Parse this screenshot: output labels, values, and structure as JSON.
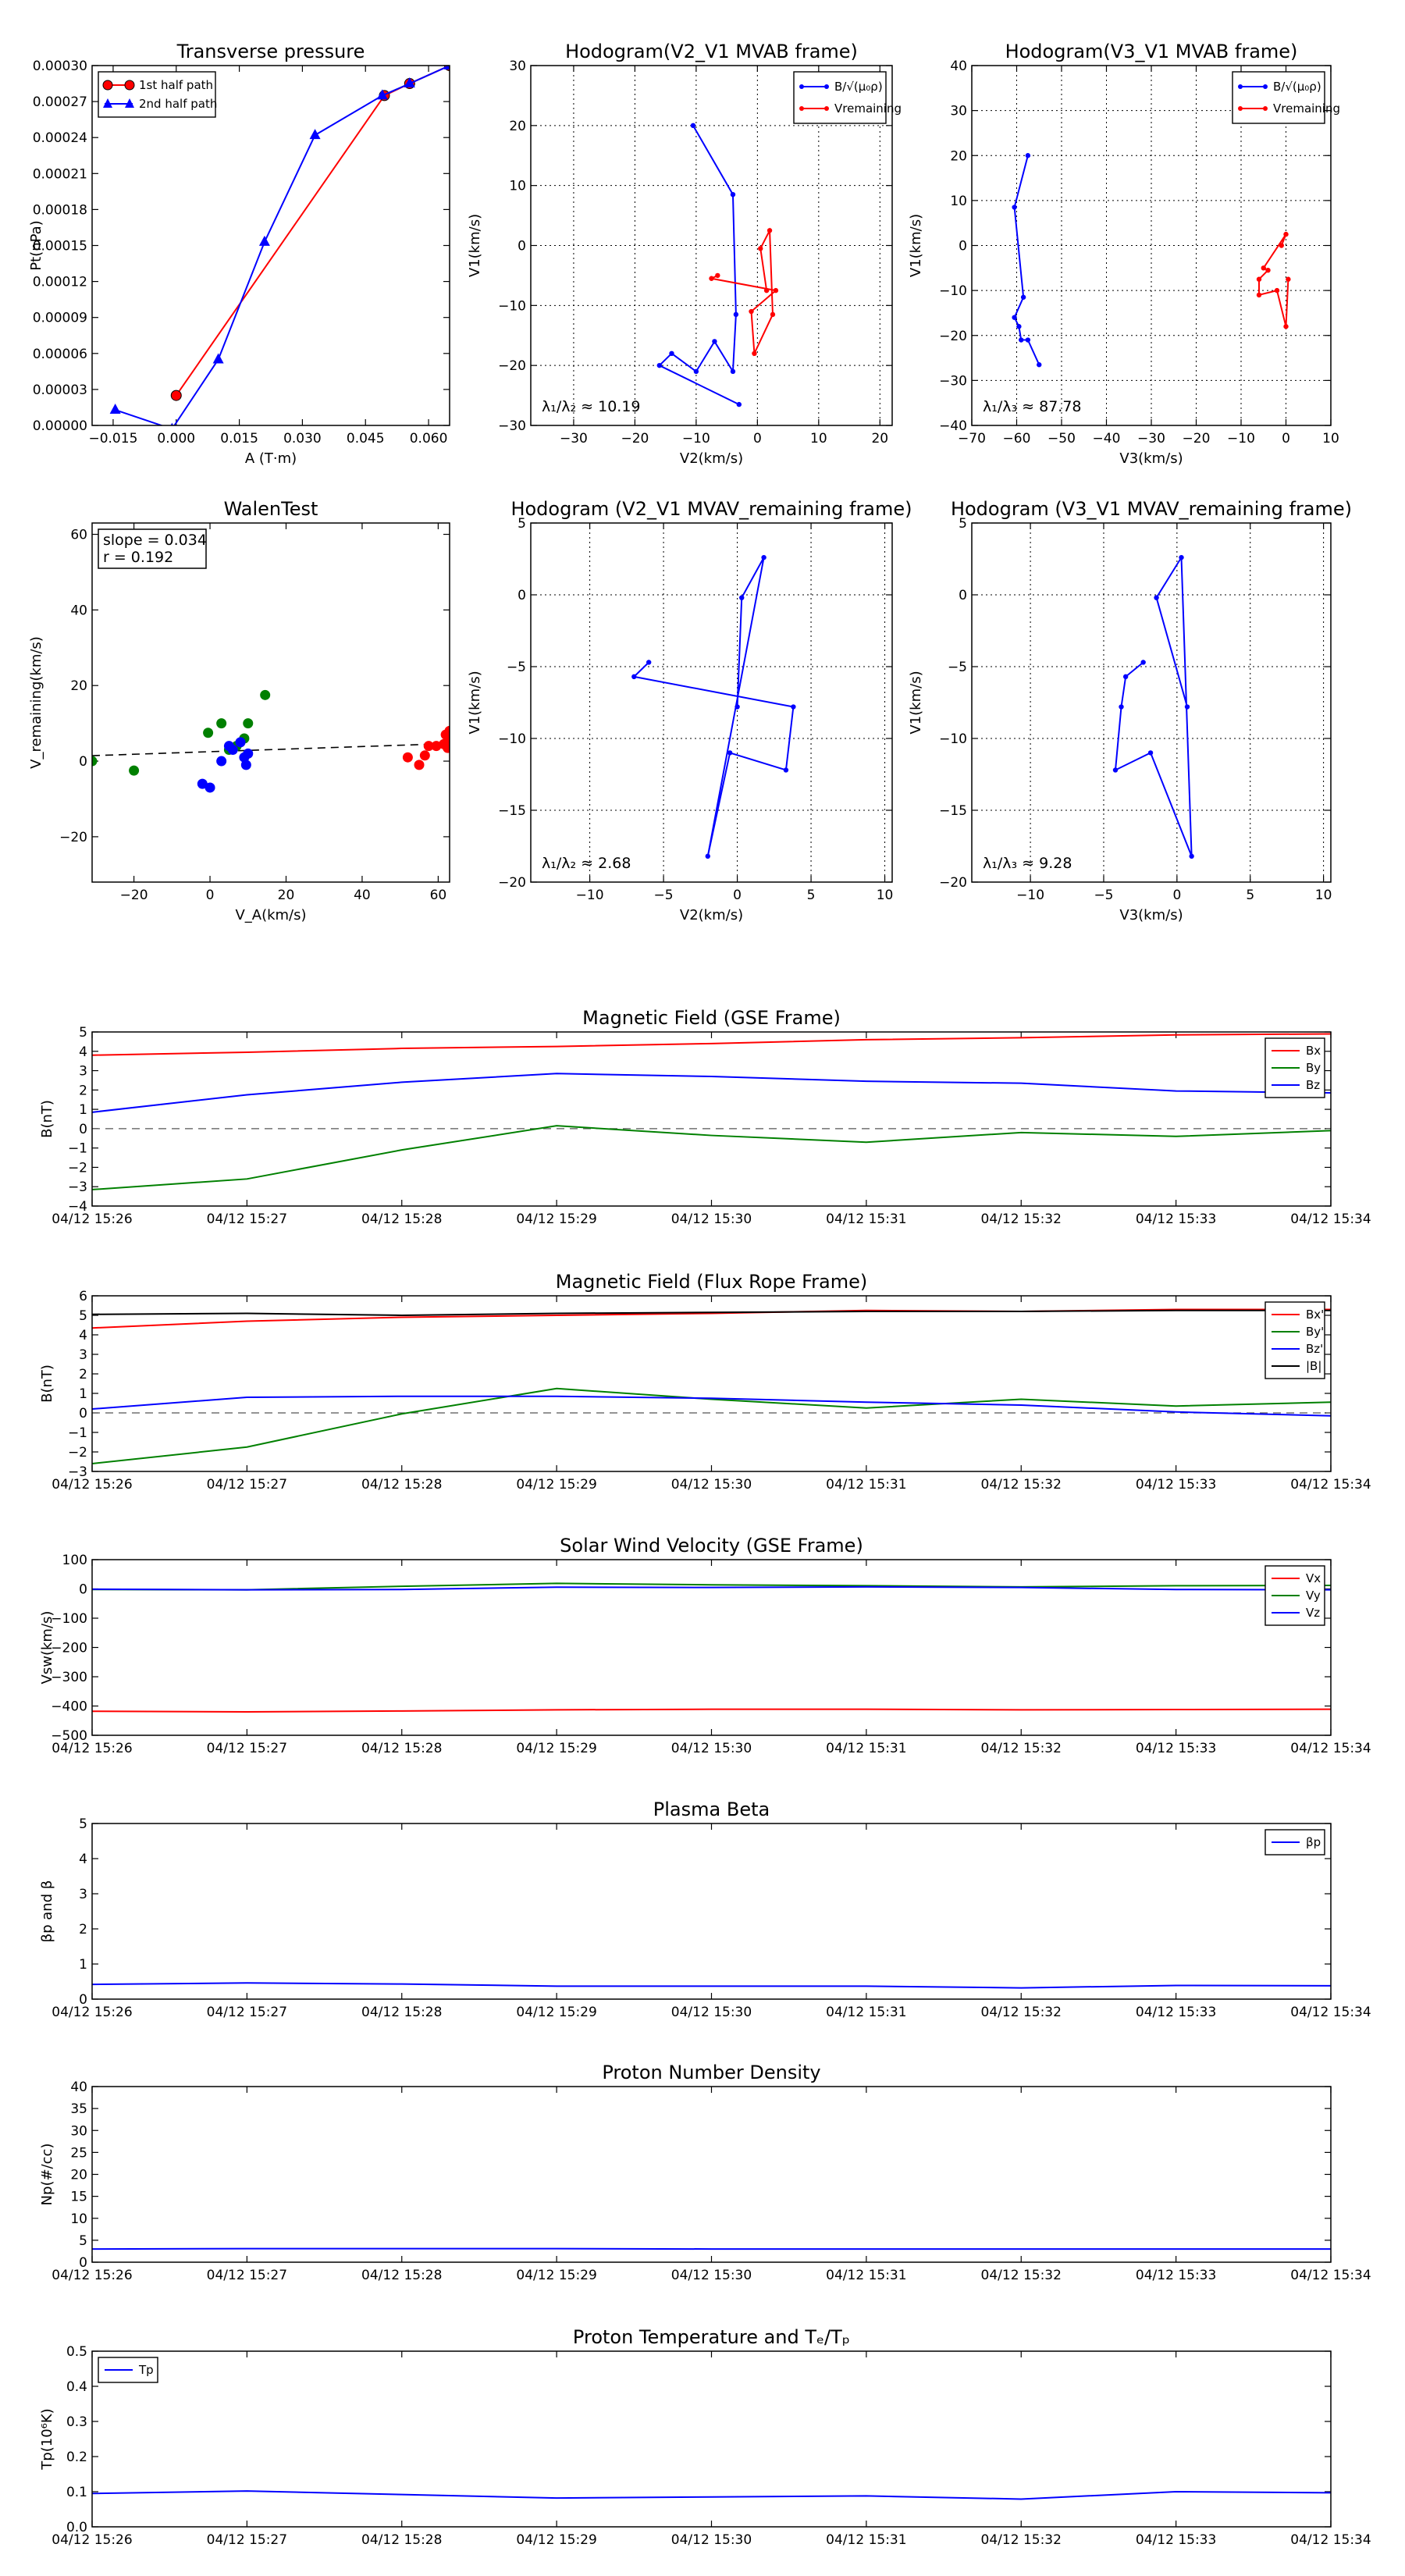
{
  "chart_data": [
    {
      "id": "tp",
      "type": "line",
      "title": "Transverse pressure",
      "xlabel": "A (T·m)",
      "ylabel": "Pt(nPa)",
      "xlim": [
        -0.02,
        0.065
      ],
      "ylim": [
        0,
        0.0003
      ],
      "xticks": [
        -0.015,
        0.0,
        0.015,
        0.03,
        0.045,
        0.06
      ],
      "xtick_labels": [
        "−0.015",
        "0.000",
        "0.015",
        "0.030",
        "0.045",
        "0.060"
      ],
      "yticks": [
        0,
        3e-05,
        6e-05,
        9e-05,
        0.00012,
        0.00015,
        0.00018,
        0.00021,
        0.00024,
        0.00027,
        0.0003
      ],
      "ytick_labels": [
        "0.00000",
        "0.00003",
        "0.00006",
        "0.00009",
        "0.00012",
        "0.00015",
        "0.00018",
        "0.00021",
        "0.00024",
        "0.00027",
        "0.00030"
      ],
      "grid": false,
      "legend": "top-left",
      "series": [
        {
          "name": "1st half path",
          "color": "#ff0000",
          "marker": "circle",
          "x": [
            0.0,
            0.0495,
            0.0555,
            0.065
          ],
          "y": [
            2.5e-05,
            0.000275,
            0.000285,
            0.0003
          ]
        },
        {
          "name": "2nd half path",
          "color": "#0000ff",
          "marker": "triangle",
          "x": [
            -0.0145,
            -0.001,
            0.01,
            0.021,
            0.033,
            0.049,
            0.0555,
            0.065
          ],
          "y": [
            1.3e-05,
            -3e-06,
            5.5e-05,
            0.000153,
            0.000242,
            0.000275,
            0.000285,
            0.0003
          ]
        }
      ]
    },
    {
      "id": "h1",
      "type": "line",
      "title": "Hodogram(V2_V1 MVAB frame)",
      "xlabel": "V2(km/s)",
      "ylabel": "V1(km/s)",
      "xlim": [
        -37,
        22
      ],
      "ylim": [
        -30,
        30
      ],
      "xticks": [
        -30,
        -20,
        -10,
        0,
        10,
        20
      ],
      "yticks": [
        -30,
        -20,
        -10,
        0,
        10,
        20,
        30
      ],
      "grid": true,
      "legend": "top-right",
      "annotation": "λ₁/λ₂ ≈ 10.19",
      "series": [
        {
          "name": "B/√(μ₀ρ)",
          "color": "#0000ff",
          "x": [
            -10.5,
            -4,
            -3.5,
            -4,
            -7,
            -10,
            -14,
            -16,
            -3
          ],
          "y": [
            20,
            8.5,
            -11.5,
            -21,
            -16,
            -21,
            -18,
            -20,
            -26.5
          ]
        },
        {
          "name": "Vremaining",
          "color": "#ff0000",
          "x": [
            -6.5,
            -7.5,
            3,
            -1,
            -0.5,
            2.5,
            2,
            0.5,
            1.5
          ],
          "y": [
            -5,
            -5.5,
            -7.5,
            -11,
            -18,
            -11.5,
            2.5,
            -0.5,
            -7.5
          ]
        }
      ]
    },
    {
      "id": "h2",
      "type": "line",
      "title": "Hodogram(V3_V1 MVAB frame)",
      "xlabel": "V3(km/s)",
      "ylabel": "V1(km/s)",
      "xlim": [
        -70,
        10
      ],
      "ylim": [
        -40,
        40
      ],
      "xticks": [
        -70,
        -60,
        -50,
        -40,
        -30,
        -20,
        -10,
        0,
        10
      ],
      "yticks": [
        -40,
        -30,
        -20,
        -10,
        0,
        10,
        20,
        30,
        40
      ],
      "grid": true,
      "legend": "top-right",
      "annotation": "λ₁/λ₃ ≈ 87.78",
      "series": [
        {
          "name": "B/√(μ₀ρ)",
          "color": "#0000ff",
          "x": [
            -57.5,
            -60.5,
            -58.5,
            -60.5,
            -59.5,
            -59,
            -57.5,
            -55
          ],
          "y": [
            20,
            8.5,
            -11.5,
            -16,
            -18,
            -21,
            -21,
            -26.5
          ]
        },
        {
          "name": "Vremaining",
          "color": "#ff0000",
          "x": [
            -1,
            0,
            -5,
            -4,
            -6,
            -6,
            -2,
            0,
            0.5
          ],
          "y": [
            0,
            2.5,
            -5,
            -5.5,
            -7.5,
            -11,
            -10,
            -18,
            -7.5
          ]
        }
      ]
    },
    {
      "id": "walen",
      "type": "scatter",
      "title": "WalenTest",
      "xlabel": "V_A(km/s)",
      "ylabel": "V_remaining(km/s)",
      "xlim": [
        -31,
        63
      ],
      "ylim": [
        -32,
        63
      ],
      "xticks": [
        -20,
        0,
        20,
        40,
        60
      ],
      "yticks": [
        -20,
        0,
        20,
        40,
        60
      ],
      "grid": false,
      "annotation_lines": [
        "slope = 0.034",
        "r = 0.192"
      ],
      "fit_line": {
        "slope": 0.034,
        "intercept": 2.5
      },
      "series": [
        {
          "name": "green",
          "color": "#008000",
          "x": [
            -31,
            -20,
            -0.5,
            3,
            5,
            7,
            9,
            10,
            14.5
          ],
          "y": [
            0,
            -2.5,
            7.5,
            10,
            3,
            4,
            6,
            10,
            17.5
          ]
        },
        {
          "name": "blue",
          "color": "#0000ff",
          "x": [
            -2,
            0,
            3,
            5,
            6,
            8,
            9,
            9.5,
            10
          ],
          "y": [
            -6,
            -7,
            0,
            4,
            3,
            5,
            1,
            -1,
            2
          ]
        },
        {
          "name": "red",
          "color": "#ff0000",
          "x": [
            52,
            55,
            56.5,
            57.5,
            59.5,
            61.5,
            62,
            62.5,
            63,
            63
          ],
          "y": [
            1,
            -1,
            1.5,
            4,
            4,
            4.5,
            7,
            3.5,
            6,
            8
          ]
        }
      ]
    },
    {
      "id": "h3",
      "type": "line",
      "title": "Hodogram (V2_V1 MVAV_remaining frame)",
      "xlabel": "V2(km/s)",
      "ylabel": "V1(km/s)",
      "xlim": [
        -14,
        10.5
      ],
      "ylim": [
        -20,
        5
      ],
      "xticks": [
        -10,
        -5,
        0,
        5,
        10
      ],
      "yticks": [
        -20,
        -15,
        -10,
        -5,
        0,
        5
      ],
      "grid": true,
      "annotation": "λ₁/λ₂ ≈ 2.68",
      "series": [
        {
          "name": "V",
          "color": "#0000ff",
          "x": [
            -6,
            -7,
            3.8,
            3.3,
            -0.5,
            -2,
            1.8,
            0.3,
            0
          ],
          "y": [
            -4.7,
            -5.7,
            -7.8,
            -12.2,
            -11,
            -18.2,
            2.6,
            -0.2,
            -7.8
          ]
        }
      ]
    },
    {
      "id": "h4",
      "type": "line",
      "title": "Hodogram (V3_V1 MVAV_remaining frame)",
      "xlabel": "V3(km/s)",
      "ylabel": "V1(km/s)",
      "xlim": [
        -14,
        10.5
      ],
      "ylim": [
        -20,
        5
      ],
      "xticks": [
        -10,
        -5,
        0,
        5,
        10
      ],
      "yticks": [
        -20,
        -15,
        -10,
        -5,
        0,
        5
      ],
      "grid": true,
      "annotation": "λ₁/λ₃ ≈ 9.28",
      "series": [
        {
          "name": "V",
          "color": "#0000ff",
          "x": [
            -2.3,
            -3.5,
            -3.8,
            -4.2,
            -1.8,
            1,
            0.3,
            -1.4,
            0.7
          ],
          "y": [
            -4.7,
            -5.7,
            -7.8,
            -12.2,
            -11,
            -18.2,
            2.6,
            -0.2,
            -7.8
          ]
        }
      ]
    },
    {
      "id": "mfgse",
      "type": "line",
      "title": "Magnetic Field (GSE Frame)",
      "ylabel": "B(nT)",
      "ylim": [
        -4,
        5
      ],
      "yticks": [
        -4,
        -3,
        -2,
        -1,
        0,
        1,
        2,
        3,
        4,
        5
      ],
      "zero_line": true,
      "legend": "top-right",
      "x": [
        "04/12 15:26",
        "04/12 15:27",
        "04/12 15:28",
        "04/12 15:29",
        "04/12 15:30",
        "04/12 15:31",
        "04/12 15:32",
        "04/12 15:33",
        "04/12 15:34"
      ],
      "series": [
        {
          "name": "Bx",
          "color": "#ff0000",
          "values": [
            3.8,
            3.95,
            4.15,
            4.25,
            4.4,
            4.6,
            4.7,
            4.85,
            4.9
          ]
        },
        {
          "name": "By",
          "color": "#008000",
          "values": [
            -3.15,
            -2.6,
            -1.1,
            0.15,
            -0.35,
            -0.7,
            -0.2,
            -0.4,
            -0.1
          ]
        },
        {
          "name": "Bz",
          "color": "#0000ff",
          "values": [
            0.85,
            1.75,
            2.4,
            2.85,
            2.7,
            2.45,
            2.35,
            1.95,
            1.85
          ]
        }
      ]
    },
    {
      "id": "mfrope",
      "type": "line",
      "title": "Magnetic Field (Flux Rope Frame)",
      "ylabel": "B(nT)",
      "ylim": [
        -3,
        6
      ],
      "yticks": [
        -3,
        -2,
        -1,
        0,
        1,
        2,
        3,
        4,
        5,
        6
      ],
      "zero_line": true,
      "legend": "top-right",
      "x": [
        "04/12 15:26",
        "04/12 15:27",
        "04/12 15:28",
        "04/12 15:29",
        "04/12 15:30",
        "04/12 15:31",
        "04/12 15:32",
        "04/12 15:33",
        "04/12 15:34"
      ],
      "series": [
        {
          "name": "Bx'",
          "color": "#ff0000",
          "values": [
            4.35,
            4.7,
            4.9,
            5.0,
            5.1,
            5.25,
            5.2,
            5.3,
            5.3
          ]
        },
        {
          "name": "By'",
          "color": "#008000",
          "values": [
            -2.6,
            -1.75,
            -0.05,
            1.25,
            0.7,
            0.25,
            0.7,
            0.35,
            0.55
          ]
        },
        {
          "name": "Bz'",
          "color": "#0000ff",
          "values": [
            0.2,
            0.8,
            0.85,
            0.85,
            0.75,
            0.55,
            0.4,
            0.05,
            -0.15
          ]
        },
        {
          "name": "|B|",
          "color": "#000000",
          "values": [
            5.05,
            5.1,
            5.0,
            5.1,
            5.15,
            5.2,
            5.2,
            5.25,
            5.25
          ]
        }
      ]
    },
    {
      "id": "vsw",
      "type": "line",
      "title": "Solar Wind Velocity (GSE Frame)",
      "ylabel": "Vsw(km/s)",
      "ylim": [
        -500,
        100
      ],
      "yticks": [
        -500,
        -400,
        -300,
        -200,
        -100,
        0,
        100
      ],
      "ytick_labels": [
        "−500",
        "−400",
        "−300",
        "−200",
        "−100",
        "0",
        "100"
      ],
      "legend": "top-right",
      "x": [
        "04/12 15:26",
        "04/12 15:27",
        "04/12 15:28",
        "04/12 15:29",
        "04/12 15:30",
        "04/12 15:31",
        "04/12 15:32",
        "04/12 15:33",
        "04/12 15:34"
      ],
      "series": [
        {
          "name": "Vx",
          "color": "#ff0000",
          "values": [
            -418,
            -420,
            -417,
            -413,
            -411,
            -411,
            -413,
            -412,
            -411
          ]
        },
        {
          "name": "Vy",
          "color": "#008000",
          "values": [
            -2,
            -3,
            9,
            19,
            14,
            11,
            7,
            11,
            12
          ]
        },
        {
          "name": "Vz",
          "color": "#0000ff",
          "values": [
            -1,
            -3,
            -2,
            6,
            5,
            7,
            5,
            -2,
            -3
          ]
        }
      ]
    },
    {
      "id": "beta",
      "type": "line",
      "title": "Plasma Beta",
      "ylabel": "βp and β",
      "ylim": [
        0,
        5
      ],
      "yticks": [
        0,
        1,
        2,
        3,
        4,
        5
      ],
      "legend": "top-right",
      "x": [
        "04/12 15:26",
        "04/12 15:27",
        "04/12 15:28",
        "04/12 15:29",
        "04/12 15:30",
        "04/12 15:31",
        "04/12 15:32",
        "04/12 15:33",
        "04/12 15:34"
      ],
      "series": [
        {
          "name": "βp",
          "color": "#0000ff",
          "values": [
            0.42,
            0.46,
            0.43,
            0.37,
            0.37,
            0.37,
            0.32,
            0.39,
            0.38
          ]
        }
      ]
    },
    {
      "id": "np",
      "type": "line",
      "title": "Proton Number Density",
      "ylabel": "Np(#/cc)",
      "ylim": [
        0,
        40
      ],
      "yticks": [
        0,
        5,
        10,
        15,
        20,
        25,
        30,
        35,
        40
      ],
      "x": [
        "04/12 15:26",
        "04/12 15:27",
        "04/12 15:28",
        "04/12 15:29",
        "04/12 15:30",
        "04/12 15:31",
        "04/12 15:32",
        "04/12 15:33",
        "04/12 15:34"
      ],
      "series": [
        {
          "color": "#0000ff",
          "values": [
            3.0,
            3.1,
            3.1,
            3.1,
            3.0,
            3.0,
            3.0,
            3.0,
            3.0
          ]
        }
      ]
    },
    {
      "id": "tp2",
      "type": "line",
      "title": "Proton Temperature and Tₑ/Tₚ",
      "ylabel": "Tp(10⁶K)",
      "ylim": [
        0,
        0.5
      ],
      "yticks": [
        0,
        0.1,
        0.2,
        0.3,
        0.4,
        0.5
      ],
      "ytick_labels": [
        "0.0",
        "0.1",
        "0.2",
        "0.3",
        "0.4",
        "0.5"
      ],
      "legend": "top-left",
      "x": [
        "04/12 15:26",
        "04/12 15:27",
        "04/12 15:28",
        "04/12 15:29",
        "04/12 15:30",
        "04/12 15:31",
        "04/12 15:32",
        "04/12 15:33",
        "04/12 15:34"
      ],
      "series": [
        {
          "name": "Tp",
          "color": "#0000ff",
          "values": [
            0.095,
            0.102,
            0.092,
            0.082,
            0.085,
            0.088,
            0.079,
            0.1,
            0.097
          ]
        }
      ]
    }
  ]
}
